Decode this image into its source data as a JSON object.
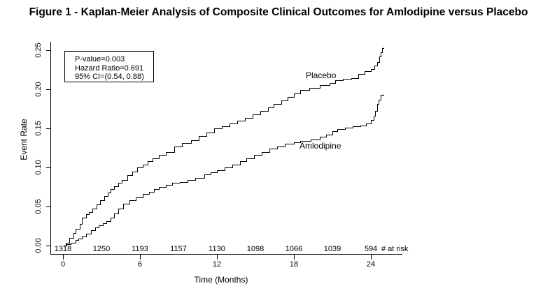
{
  "figure": {
    "title": "Figure 1 - Kaplan-Meier Analysis of Composite Clinical Outcomes for Amlodipine versus Placebo"
  },
  "stat_box": {
    "line1": "P-value=0.003",
    "line2": "Hazard Ratio=0.691",
    "line3": "95% CI=(0.54, 0.88)"
  },
  "axes": {
    "y": {
      "label": "Event Rate",
      "tick_labels": [
        "0.00",
        "0.05",
        "0.10",
        "0.15",
        "0.20",
        "0.25"
      ]
    },
    "x": {
      "label": "Time (Months)",
      "tick_labels": [
        "0",
        "6",
        "12",
        "18",
        "24"
      ]
    }
  },
  "curve_labels": {
    "placebo": "Placebo",
    "amlodipine": "Amlodipine"
  },
  "risk_row": {
    "caption": "# at risk",
    "values": [
      "1318",
      "1250",
      "1193",
      "1157",
      "1130",
      "1098",
      "1066",
      "1039",
      "594"
    ]
  },
  "chart_data": {
    "type": "line",
    "subtype": "kaplan-meier-step",
    "title": "Figure 1 - Kaplan-Meier Analysis of Composite Clinical Outcomes for Amlodipine versus Placebo",
    "xlabel": "Time (Months)",
    "ylabel": "Event Rate",
    "xlim": [
      0,
      25
    ],
    "ylim": [
      0,
      0.25
    ],
    "x_ticks": [
      0,
      6,
      12,
      18,
      24
    ],
    "y_ticks": [
      0,
      0.05,
      0.1,
      0.15,
      0.2,
      0.25
    ],
    "grid": false,
    "legend_position": "inline-curve-labels",
    "annotations": {
      "p_value": "P-value=0.003",
      "hazard_ratio": "Hazard Ratio=0.691",
      "confidence_interval": "95% CI=(0.54, 0.88)"
    },
    "number_at_risk": {
      "label": "# at risk",
      "months": [
        0,
        3,
        6,
        9,
        12,
        15,
        18,
        21,
        24
      ],
      "values": [
        1318,
        1250,
        1193,
        1157,
        1130,
        1098,
        1066,
        1039,
        594
      ]
    },
    "series": [
      {
        "name": "Placebo",
        "points": [
          [
            0,
            0
          ],
          [
            0.2,
            0.004
          ],
          [
            0.5,
            0.01
          ],
          [
            0.8,
            0.016
          ],
          [
            1,
            0.021
          ],
          [
            1.3,
            0.028
          ],
          [
            1.5,
            0.036
          ],
          [
            1.8,
            0.04
          ],
          [
            2,
            0.043
          ],
          [
            2.3,
            0.047
          ],
          [
            2.6,
            0.053
          ],
          [
            2.9,
            0.058
          ],
          [
            3.2,
            0.063
          ],
          [
            3.5,
            0.068
          ],
          [
            3.7,
            0.072
          ],
          [
            4,
            0.076
          ],
          [
            4.3,
            0.08
          ],
          [
            4.6,
            0.084
          ],
          [
            5,
            0.09
          ],
          [
            5.4,
            0.095
          ],
          [
            5.8,
            0.1
          ],
          [
            6.2,
            0.104
          ],
          [
            6.6,
            0.108
          ],
          [
            7,
            0.112
          ],
          [
            7.5,
            0.116
          ],
          [
            8,
            0.12
          ],
          [
            8.7,
            0.127
          ],
          [
            9.3,
            0.131
          ],
          [
            10,
            0.135
          ],
          [
            10.6,
            0.14
          ],
          [
            11.2,
            0.145
          ],
          [
            11.8,
            0.15
          ],
          [
            12.4,
            0.153
          ],
          [
            13,
            0.156
          ],
          [
            13.6,
            0.16
          ],
          [
            14.2,
            0.163
          ],
          [
            14.8,
            0.168
          ],
          [
            15.4,
            0.172
          ],
          [
            16,
            0.177
          ],
          [
            16.4,
            0.181
          ],
          [
            17,
            0.186
          ],
          [
            17.5,
            0.19
          ],
          [
            18,
            0.195
          ],
          [
            18.5,
            0.199
          ],
          [
            19.2,
            0.202
          ],
          [
            20,
            0.205
          ],
          [
            20.8,
            0.208
          ],
          [
            21.2,
            0.212
          ],
          [
            21.8,
            0.213
          ],
          [
            22.5,
            0.214
          ],
          [
            23,
            0.22
          ],
          [
            23.5,
            0.223
          ],
          [
            24,
            0.226
          ],
          [
            24.3,
            0.23
          ],
          [
            24.5,
            0.235
          ],
          [
            24.65,
            0.242
          ],
          [
            24.75,
            0.247
          ],
          [
            24.85,
            0.253
          ],
          [
            25,
            0.254
          ]
        ]
      },
      {
        "name": "Amlodipine",
        "points": [
          [
            0,
            0
          ],
          [
            0.3,
            0.002
          ],
          [
            0.6,
            0.004
          ],
          [
            1,
            0.007
          ],
          [
            1.2,
            0.009
          ],
          [
            1.5,
            0.012
          ],
          [
            1.8,
            0.015
          ],
          [
            2.2,
            0.02
          ],
          [
            2.5,
            0.023
          ],
          [
            2.8,
            0.026
          ],
          [
            3.1,
            0.029
          ],
          [
            3.4,
            0.031
          ],
          [
            3.7,
            0.036
          ],
          [
            4,
            0.041
          ],
          [
            4.3,
            0.047
          ],
          [
            4.7,
            0.054
          ],
          [
            5.2,
            0.058
          ],
          [
            5.7,
            0.062
          ],
          [
            6.2,
            0.066
          ],
          [
            6.7,
            0.069
          ],
          [
            7.1,
            0.072
          ],
          [
            7.5,
            0.075
          ],
          [
            8,
            0.078
          ],
          [
            8.5,
            0.08
          ],
          [
            9.1,
            0.081
          ],
          [
            9.7,
            0.084
          ],
          [
            10.3,
            0.087
          ],
          [
            11,
            0.091
          ],
          [
            11.5,
            0.094
          ],
          [
            12,
            0.096
          ],
          [
            12.6,
            0.1
          ],
          [
            13.2,
            0.104
          ],
          [
            13.8,
            0.108
          ],
          [
            14.3,
            0.112
          ],
          [
            14.9,
            0.116
          ],
          [
            15.5,
            0.12
          ],
          [
            16.1,
            0.124
          ],
          [
            16.7,
            0.127
          ],
          [
            17.3,
            0.13
          ],
          [
            18,
            0.132
          ],
          [
            18.5,
            0.134
          ],
          [
            19.3,
            0.136
          ],
          [
            20,
            0.139
          ],
          [
            20.5,
            0.142
          ],
          [
            21,
            0.146
          ],
          [
            21.4,
            0.149
          ],
          [
            22,
            0.151
          ],
          [
            22.6,
            0.153
          ],
          [
            23.2,
            0.154
          ],
          [
            23.6,
            0.156
          ],
          [
            24,
            0.161
          ],
          [
            24.2,
            0.166
          ],
          [
            24.35,
            0.172
          ],
          [
            24.5,
            0.181
          ],
          [
            24.6,
            0.187
          ],
          [
            24.75,
            0.193
          ],
          [
            25,
            0.194
          ]
        ]
      }
    ],
    "colors": {
      "curves": "#000000",
      "background": "#ffffff"
    }
  }
}
